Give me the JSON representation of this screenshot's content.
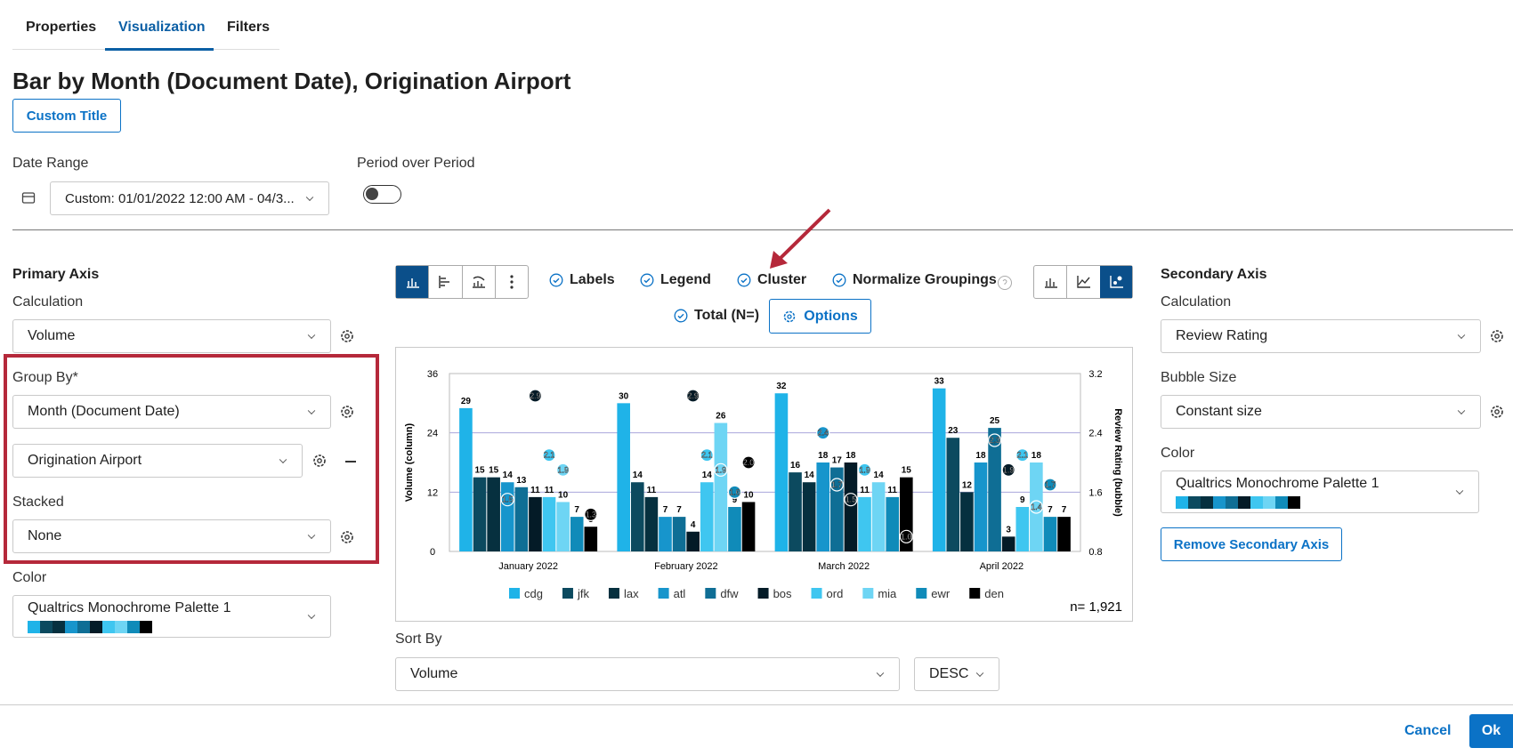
{
  "tabs": [
    "Properties",
    "Visualization",
    "Filters"
  ],
  "header": {
    "title": "Bar by Month (Document Date), Origination Airport",
    "custom_title_button": "Custom Title"
  },
  "date_range": {
    "label": "Date Range",
    "value": "Custom: 01/01/2022 12:00 AM - 04/3..."
  },
  "period_over_period": {
    "label": "Period over Period",
    "enabled": false
  },
  "primary_axis": {
    "heading": "Primary Axis",
    "calculation_label": "Calculation",
    "calculation": "Volume",
    "group_by_label": "Group By*",
    "group_by": [
      "Month (Document Date)",
      "Origination Airport"
    ],
    "stacked_label": "Stacked",
    "stacked": "None",
    "color_label": "Color",
    "color": "Qualtrics Monochrome Palette 1"
  },
  "toolbar": {
    "labels": "Labels",
    "legend": "Legend",
    "cluster": "Cluster",
    "normalize": "Normalize Groupings",
    "total": "Total (N=)",
    "options": "Options"
  },
  "chart_data": {
    "type": "bar",
    "ylabel": "Volume (column)",
    "y2label": "Review Rating (bubble)",
    "categories": [
      "January 2022",
      "February 2022",
      "March 2022",
      "April 2022"
    ],
    "ylim": [
      0,
      36
    ],
    "yticks": [
      0,
      12,
      24,
      36
    ],
    "y2lim": [
      0.8,
      3.2
    ],
    "y2ticks": [
      0.8,
      1.6,
      2.4,
      3.2
    ],
    "grid": true,
    "total_label": "n= 1,921",
    "series": [
      {
        "name": "cdg",
        "color": "#1fb3e8",
        "values": [
          29,
          30,
          32,
          33
        ],
        "bubbles": [
          null,
          null,
          null,
          null
        ],
        "bubble_labels": [
          null,
          null,
          null,
          null
        ]
      },
      {
        "name": "jfk",
        "color": "#0c4a5f",
        "values": [
          15,
          14,
          16,
          23
        ],
        "bubbles": [
          null,
          null,
          null,
          null
        ],
        "bubble_labels": [
          null,
          null,
          null,
          null
        ]
      },
      {
        "name": "lax",
        "color": "#06303f",
        "values": [
          15,
          11,
          14,
          12
        ],
        "bubbles": [
          null,
          null,
          null,
          null
        ],
        "bubble_labels": [
          null,
          null,
          null,
          null
        ]
      },
      {
        "name": "atl",
        "color": "#1795cc",
        "values": [
          14,
          7,
          18,
          18
        ],
        "bubbles": [
          1.5,
          null,
          2.4,
          null
        ],
        "bubble_labels": [
          "1.5",
          null,
          "2.4",
          null
        ]
      },
      {
        "name": "dfw",
        "color": "#0f6e95",
        "values": [
          13,
          7,
          17,
          25
        ],
        "bubbles": [
          null,
          null,
          1.7,
          2.3
        ],
        "bubble_labels": [
          null,
          null,
          "1.7",
          "2.3"
        ]
      },
      {
        "name": "bos",
        "color": "#041b27",
        "values": [
          11,
          4,
          18,
          3
        ],
        "bubbles": [
          2.9,
          2.9,
          1.5,
          1.9
        ],
        "bubble_labels": [
          "2.9",
          "2.9",
          "1.5",
          "1.9"
        ]
      },
      {
        "name": "ord",
        "color": "#3fc6f0",
        "values": [
          11,
          14,
          11,
          9
        ],
        "bubbles": [
          2.1,
          2.1,
          1.9,
          2.1
        ],
        "bubble_labels": [
          "2.1",
          "2.1",
          "1.9",
          "2.1"
        ]
      },
      {
        "name": "mia",
        "color": "#6ed5f4",
        "values": [
          10,
          26,
          14,
          18
        ],
        "bubbles": [
          1.9,
          1.9,
          null,
          1.4
        ],
        "bubble_labels": [
          "1.9",
          "1.9",
          null,
          "1.4"
        ]
      },
      {
        "name": "ewr",
        "color": "#108bb9",
        "values": [
          7,
          9,
          11,
          7
        ],
        "bubbles": [
          null,
          1.6,
          null,
          1.7
        ],
        "bubble_labels": [
          null,
          "1.6",
          null,
          "1.7"
        ]
      },
      {
        "name": "den",
        "color": "#000000",
        "values": [
          5,
          10,
          15,
          7
        ],
        "bubbles": [
          1.3,
          2.0,
          1.0,
          null
        ],
        "bubble_labels": [
          "1.3",
          "2.0",
          "1.0",
          null
        ]
      }
    ]
  },
  "sort": {
    "label": "Sort By",
    "value": "Volume",
    "order": "DESC"
  },
  "secondary_axis": {
    "heading": "Secondary Axis",
    "calculation_label": "Calculation",
    "calculation": "Review Rating",
    "bubble_size_label": "Bubble Size",
    "bubble_size": "Constant size",
    "color_label": "Color",
    "color": "Qualtrics Monochrome Palette 1",
    "remove_button": "Remove Secondary Axis"
  },
  "footer": {
    "cancel": "Cancel",
    "ok": "Ok"
  }
}
